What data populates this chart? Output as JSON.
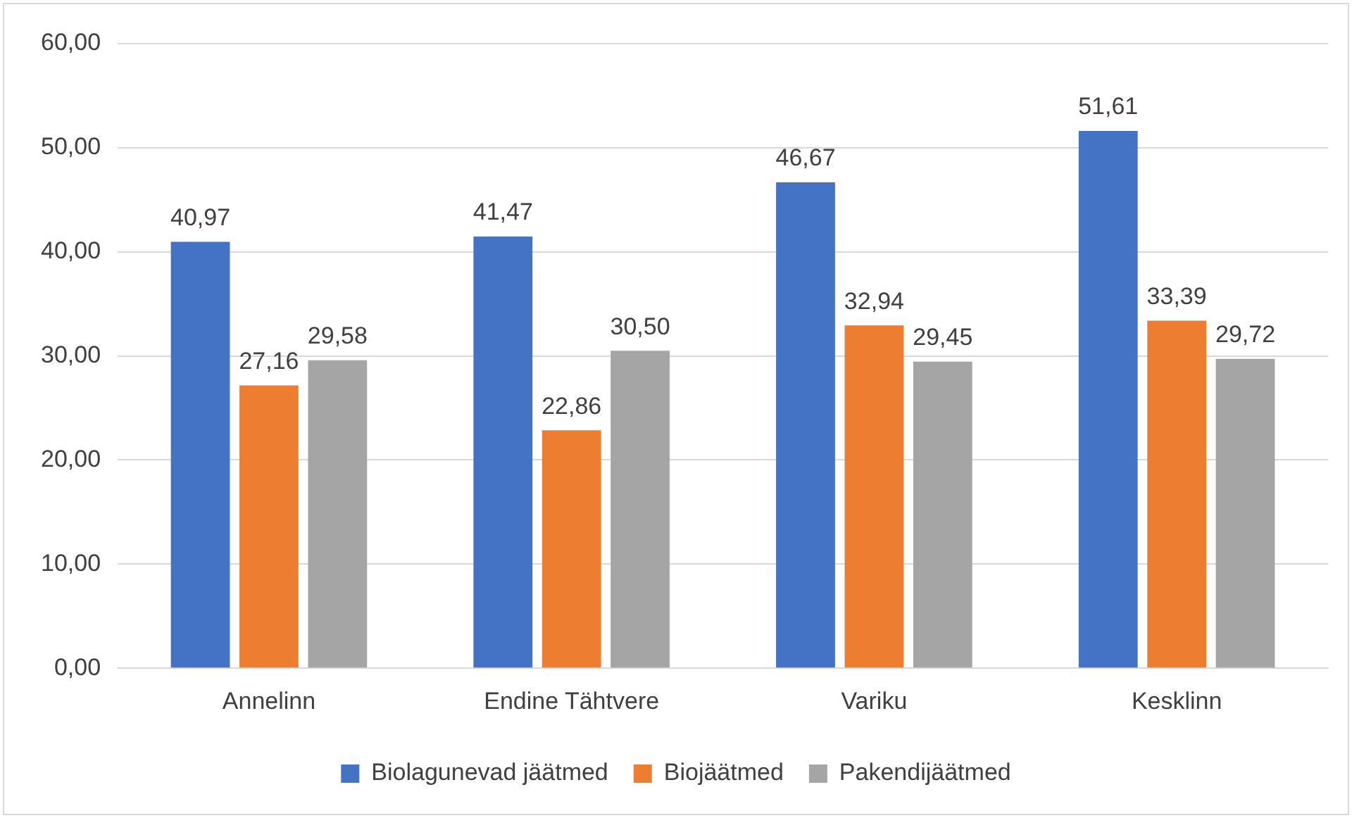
{
  "chart_data": {
    "type": "bar",
    "categories": [
      "Annelinn",
      "Endine Tähtvere",
      "Variku",
      "Kesklinn"
    ],
    "series": [
      {
        "name": "Biolagunevad jäätmed",
        "color": "#4472c4",
        "values": [
          40.97,
          41.47,
          46.67,
          51.61
        ],
        "value_labels": [
          "40,97",
          "41,47",
          "46,67",
          "51,61"
        ]
      },
      {
        "name": "Biojäätmed",
        "color": "#ed7d31",
        "values": [
          27.16,
          22.86,
          32.94,
          33.39
        ],
        "value_labels": [
          "27,16",
          "22,86",
          "32,94",
          "33,39"
        ]
      },
      {
        "name": "Pakendijäätmed",
        "color": "#a5a5a5",
        "values": [
          29.58,
          30.5,
          29.45,
          29.72
        ],
        "value_labels": [
          "29,58",
          "30,50",
          "29,45",
          "29,72"
        ]
      }
    ],
    "ylim": [
      0,
      60
    ],
    "yticks": [
      {
        "value": 0,
        "label": "0,00"
      },
      {
        "value": 10,
        "label": "10,00"
      },
      {
        "value": 20,
        "label": "20,00"
      },
      {
        "value": 30,
        "label": "30,00"
      },
      {
        "value": 40,
        "label": "40,00"
      },
      {
        "value": 50,
        "label": "50,00"
      },
      {
        "value": 60,
        "label": "60,00"
      }
    ],
    "grid": "y",
    "legend": "bottom"
  }
}
